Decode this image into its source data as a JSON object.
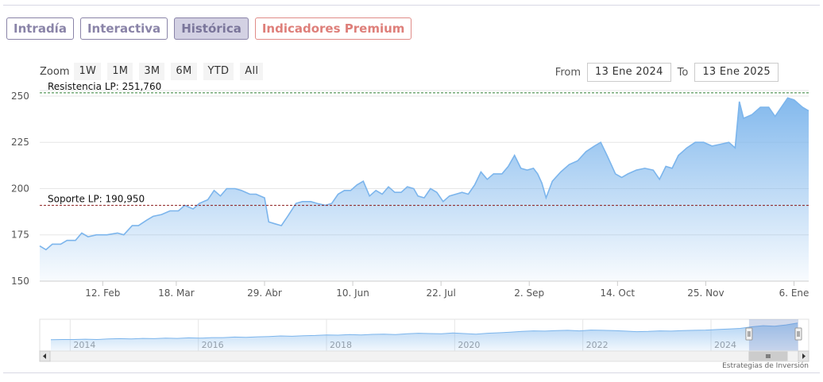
{
  "tabs": [
    {
      "label": "Intradía",
      "state": "normal"
    },
    {
      "label": "Interactiva",
      "state": "normal"
    },
    {
      "label": "Histórica",
      "state": "active"
    },
    {
      "label": "Indicadores Premium",
      "state": "premium"
    }
  ],
  "zoom": {
    "label": "Zoom",
    "buttons": [
      "1W",
      "1M",
      "3M",
      "6M",
      "YTD",
      "All"
    ]
  },
  "range": {
    "from_label": "From",
    "from_value": "13 Ene 2024",
    "to_label": "To",
    "to_value": "13 Ene 2025"
  },
  "credit": "Estrategias de Inversión",
  "colors": {
    "accent": "#7cb5ec",
    "tab_text": "#8a84a8",
    "tab_active_bg": "#d3d1e3",
    "premium": "#de7f7a",
    "resistance_line": "#2e7d32",
    "support_line": "#8b1a1a"
  },
  "chart_data": {
    "type": "area",
    "xlabel": "",
    "ylabel": "",
    "ylim": [
      150,
      253
    ],
    "y_ticks": [
      150,
      175,
      200,
      225,
      250
    ],
    "x_ticks": [
      {
        "label": "12. Feb",
        "date": "2024-02-12"
      },
      {
        "label": "18. Mar",
        "date": "2024-03-18"
      },
      {
        "label": "29. Abr",
        "date": "2024-04-29"
      },
      {
        "label": "10. Jun",
        "date": "2024-06-10"
      },
      {
        "label": "22. Jul",
        "date": "2024-07-22"
      },
      {
        "label": "2. Sep",
        "date": "2024-09-02"
      },
      {
        "label": "14. Oct",
        "date": "2024-10-14"
      },
      {
        "label": "25. Nov",
        "date": "2024-11-25"
      },
      {
        "label": "6. Ene",
        "date": "2025-01-06"
      }
    ],
    "grid": true,
    "series": [
      {
        "points": [
          [
            "2024-01-13",
            169
          ],
          [
            "2024-01-16",
            167
          ],
          [
            "2024-01-19",
            170
          ],
          [
            "2024-01-23",
            170
          ],
          [
            "2024-01-26",
            172
          ],
          [
            "2024-01-30",
            172
          ],
          [
            "2024-02-02",
            176
          ],
          [
            "2024-02-05",
            174
          ],
          [
            "2024-02-09",
            175
          ],
          [
            "2024-02-14",
            175
          ],
          [
            "2024-02-19",
            176
          ],
          [
            "2024-02-22",
            175
          ],
          [
            "2024-02-26",
            180
          ],
          [
            "2024-02-29",
            180
          ],
          [
            "2024-03-04",
            183
          ],
          [
            "2024-03-07",
            185
          ],
          [
            "2024-03-11",
            186
          ],
          [
            "2024-03-15",
            188
          ],
          [
            "2024-03-19",
            188
          ],
          [
            "2024-03-22",
            191
          ],
          [
            "2024-03-26",
            189
          ],
          [
            "2024-03-29",
            192
          ],
          [
            "2024-04-02",
            194
          ],
          [
            "2024-04-05",
            199
          ],
          [
            "2024-04-08",
            196
          ],
          [
            "2024-04-11",
            200
          ],
          [
            "2024-04-15",
            200
          ],
          [
            "2024-04-18",
            199
          ],
          [
            "2024-04-22",
            197
          ],
          [
            "2024-04-25",
            197
          ],
          [
            "2024-04-29",
            195
          ],
          [
            "2024-05-01",
            182
          ],
          [
            "2024-05-04",
            181
          ],
          [
            "2024-05-07",
            180
          ],
          [
            "2024-05-10",
            185
          ],
          [
            "2024-05-14",
            192
          ],
          [
            "2024-05-17",
            193
          ],
          [
            "2024-05-21",
            193
          ],
          [
            "2024-05-24",
            192
          ],
          [
            "2024-05-28",
            191
          ],
          [
            "2024-05-31",
            192
          ],
          [
            "2024-06-03",
            197
          ],
          [
            "2024-06-06",
            199
          ],
          [
            "2024-06-09",
            199
          ],
          [
            "2024-06-12",
            202
          ],
          [
            "2024-06-15",
            204
          ],
          [
            "2024-06-18",
            196
          ],
          [
            "2024-06-21",
            199
          ],
          [
            "2024-06-24",
            197
          ],
          [
            "2024-06-27",
            201
          ],
          [
            "2024-06-30",
            198
          ],
          [
            "2024-07-03",
            198
          ],
          [
            "2024-07-06",
            201
          ],
          [
            "2024-07-09",
            200
          ],
          [
            "2024-07-11",
            196
          ],
          [
            "2024-07-14",
            195
          ],
          [
            "2024-07-17",
            200
          ],
          [
            "2024-07-20",
            198
          ],
          [
            "2024-07-23",
            193
          ],
          [
            "2024-07-26",
            196
          ],
          [
            "2024-07-29",
            197
          ],
          [
            "2024-08-01",
            198
          ],
          [
            "2024-08-04",
            197
          ],
          [
            "2024-08-07",
            202
          ],
          [
            "2024-08-10",
            209
          ],
          [
            "2024-08-13",
            205
          ],
          [
            "2024-08-16",
            208
          ],
          [
            "2024-08-20",
            208
          ],
          [
            "2024-08-23",
            212
          ],
          [
            "2024-08-26",
            218
          ],
          [
            "2024-08-29",
            211
          ],
          [
            "2024-09-01",
            210
          ],
          [
            "2024-09-04",
            211
          ],
          [
            "2024-09-06",
            208
          ],
          [
            "2024-09-08",
            203
          ],
          [
            "2024-09-10",
            195
          ],
          [
            "2024-09-13",
            204
          ],
          [
            "2024-09-17",
            209
          ],
          [
            "2024-09-21",
            213
          ],
          [
            "2024-09-25",
            215
          ],
          [
            "2024-09-29",
            220
          ],
          [
            "2024-10-03",
            223
          ],
          [
            "2024-10-06",
            225
          ],
          [
            "2024-10-09",
            218
          ],
          [
            "2024-10-11",
            213
          ],
          [
            "2024-10-13",
            208
          ],
          [
            "2024-10-16",
            206
          ],
          [
            "2024-10-19",
            208
          ],
          [
            "2024-10-23",
            210
          ],
          [
            "2024-10-27",
            211
          ],
          [
            "2024-10-31",
            210
          ],
          [
            "2024-11-03",
            205
          ],
          [
            "2024-11-06",
            212
          ],
          [
            "2024-11-09",
            211
          ],
          [
            "2024-11-12",
            218
          ],
          [
            "2024-11-16",
            222
          ],
          [
            "2024-11-20",
            225
          ],
          [
            "2024-11-24",
            225
          ],
          [
            "2024-11-28",
            223
          ],
          [
            "2024-12-02",
            224
          ],
          [
            "2024-12-06",
            225
          ],
          [
            "2024-12-09",
            222
          ],
          [
            "2024-12-11",
            247
          ],
          [
            "2024-12-13",
            238
          ],
          [
            "2024-12-17",
            240
          ],
          [
            "2024-12-21",
            244
          ],
          [
            "2024-12-25",
            244
          ],
          [
            "2024-12-28",
            239
          ],
          [
            "2024-12-31",
            244
          ],
          [
            "2025-01-03",
            249
          ],
          [
            "2025-01-06",
            248
          ],
          [
            "2025-01-08",
            246
          ],
          [
            "2025-01-10",
            244
          ],
          [
            "2025-01-13",
            242
          ]
        ]
      }
    ],
    "annotations": [
      {
        "label": "Resistencia LP: 251,760",
        "value": 251.76,
        "style": "dashed"
      },
      {
        "label": "Soporte LP: 190,950",
        "value": 190.95,
        "style": "dashed"
      }
    ],
    "navigator": {
      "year_labels": [
        "2014",
        "2016",
        "2018",
        "2020",
        "2022",
        "2024"
      ],
      "selected_range": [
        "2024-01-13",
        "2025-01-13"
      ],
      "overview_values": [
        30,
        31,
        31,
        32,
        31,
        33,
        34,
        33,
        35,
        34,
        36,
        35,
        37,
        36,
        38,
        38,
        40,
        39,
        41,
        42,
        44,
        43,
        45,
        46,
        48,
        47,
        49,
        48,
        50,
        51,
        49,
        52,
        54,
        53,
        52,
        55,
        53,
        51,
        54,
        56,
        58,
        61,
        63,
        62,
        64,
        65,
        63,
        66,
        65,
        64,
        62,
        60,
        61,
        63,
        62,
        64,
        65,
        66,
        68,
        70,
        72,
        78,
        82,
        80,
        85,
        92
      ]
    }
  }
}
